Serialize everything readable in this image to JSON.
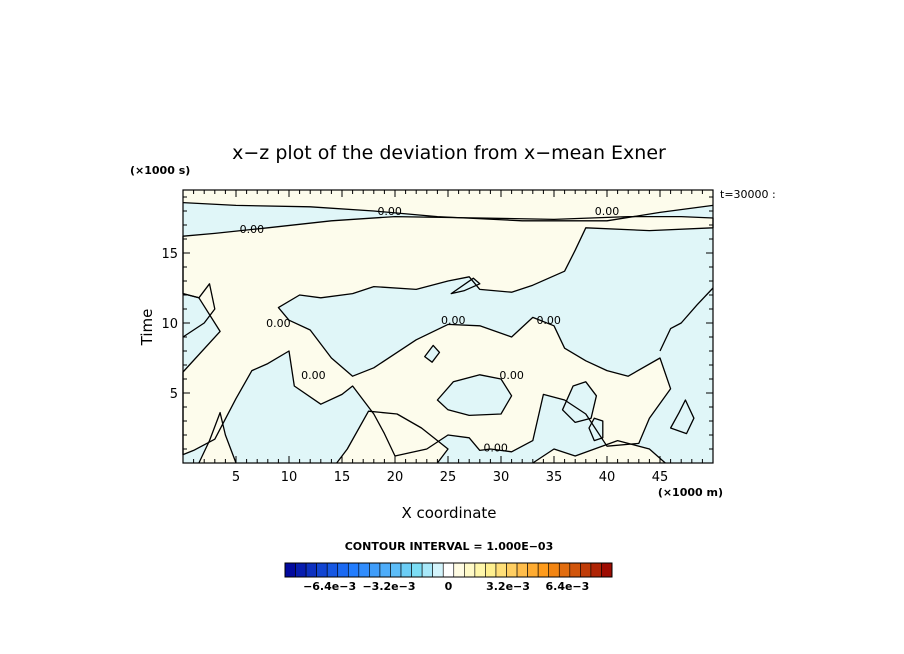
{
  "chart_data": {
    "type": "heatmap",
    "title": "x−z plot of the deviation from x−mean Exner",
    "xlabel": "X coordinate",
    "ylabel": "Time",
    "x_unit": "(×1000 m)",
    "y_unit": "(×1000 s)",
    "xlim": [
      0,
      50
    ],
    "ylim": [
      0,
      19.5
    ],
    "x_ticks": [
      5,
      10,
      15,
      20,
      25,
      30,
      35,
      40,
      45
    ],
    "y_ticks": [
      5,
      10,
      15
    ],
    "annotation": "t=30000 :",
    "contour_interval": "CONTOUR INTERVAL = 1.000E−03",
    "contour_labels": [
      {
        "text": "0.00",
        "x": 19.5,
        "y": 18.0
      },
      {
        "text": "0.00",
        "x": 40.0,
        "y": 18.0
      },
      {
        "text": "0.00",
        "x": 6.5,
        "y": 16.7
      },
      {
        "text": "0.00",
        "x": 9.0,
        "y": 10.0
      },
      {
        "text": "0.00",
        "x": 25.5,
        "y": 10.2
      },
      {
        "text": "0.00",
        "x": 34.5,
        "y": 10.2
      },
      {
        "text": "0.00",
        "x": 12.3,
        "y": 6.3
      },
      {
        "text": "0.00",
        "x": 31.0,
        "y": 6.3
      },
      {
        "text": "0.00",
        "x": 29.5,
        "y": 1.1
      }
    ],
    "colorbar": {
      "range": [
        -0.0088,
        0.0088
      ],
      "levels": 31,
      "tick_labels": [
        {
          "text": "−6.4e−3",
          "value": -0.0064
        },
        {
          "text": "−3.2e−3",
          "value": -0.0032
        },
        {
          "text": "0",
          "value": 0
        },
        {
          "text": "3.2e−3",
          "value": 0.0032
        },
        {
          "text": "6.4e−3",
          "value": 0.0064
        }
      ]
    },
    "region_colors": {
      "negative": "#e0f6f8",
      "positive": "#fdfcec",
      "contour": "#000000"
    }
  }
}
